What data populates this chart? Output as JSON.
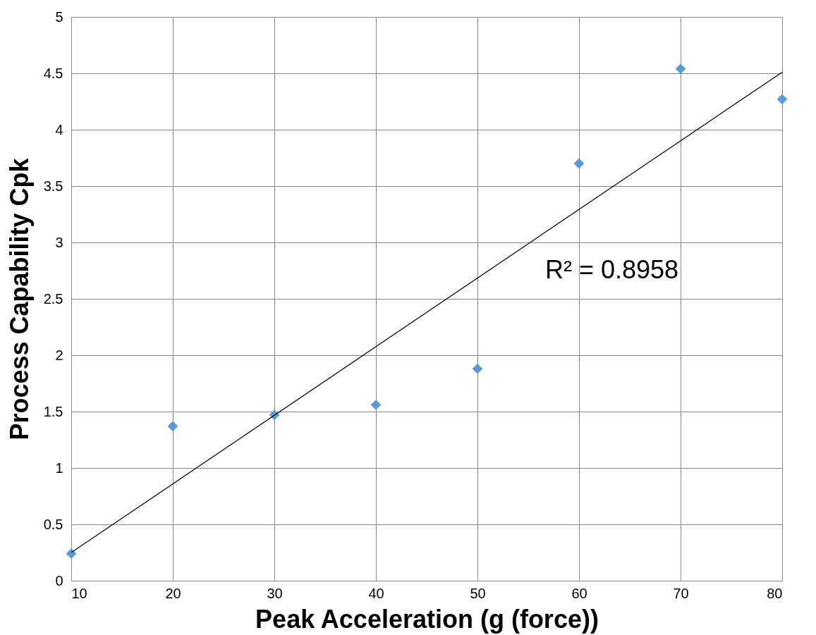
{
  "chart_data": {
    "type": "scatter",
    "xlabel": "Peak Acceleration (g (force))",
    "ylabel": "Process Capability Cpk",
    "x": [
      10,
      20,
      30,
      40,
      50,
      60,
      70,
      80
    ],
    "series": [
      {
        "type": "scatter",
        "color": "#5b9bd5",
        "values": [
          0.24,
          1.37,
          1.47,
          1.56,
          1.88,
          3.7,
          4.54,
          4.27
        ],
        "marker": "diamond"
      },
      {
        "type": "line",
        "color": "#000000",
        "x": [
          10,
          80
        ],
        "values": [
          0.25,
          4.51
        ],
        "marker": "none"
      }
    ],
    "xlim": [
      10,
      80
    ],
    "xticks": [
      10,
      20,
      30,
      40,
      50,
      60,
      70,
      80
    ],
    "ylim": [
      0,
      5
    ],
    "yticks": [
      0,
      0.5,
      1,
      1.5,
      2,
      2.5,
      3,
      3.5,
      4,
      4.5,
      5
    ],
    "grid": true,
    "legend": false,
    "annotations": [
      "R² = 0.8958"
    ]
  }
}
